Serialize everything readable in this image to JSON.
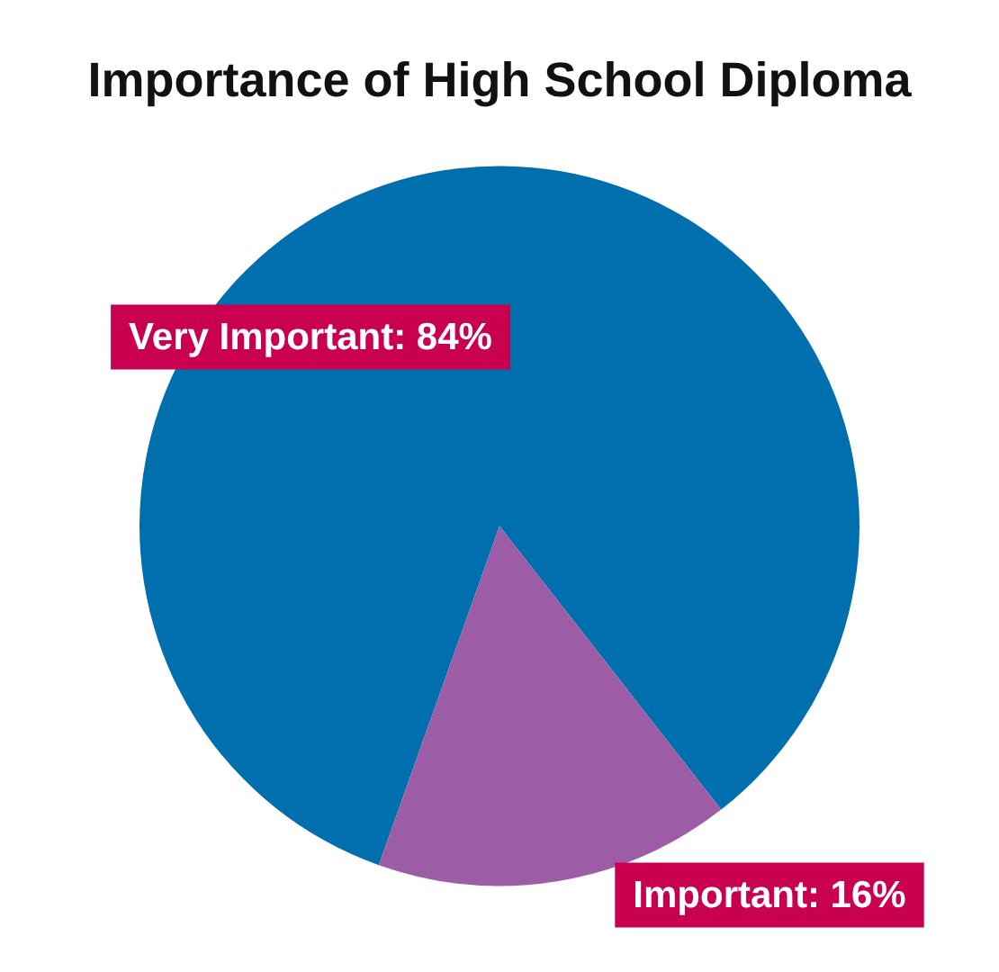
{
  "chart_data": {
    "type": "pie",
    "title": "Importance of High School Diploma",
    "categories": [
      "Very Important",
      "Important"
    ],
    "values": [
      84,
      16
    ],
    "colors": [
      "#006fad",
      "#9c5ca6"
    ],
    "value_labels": [
      "84%",
      "16%"
    ],
    "legend": false
  }
}
